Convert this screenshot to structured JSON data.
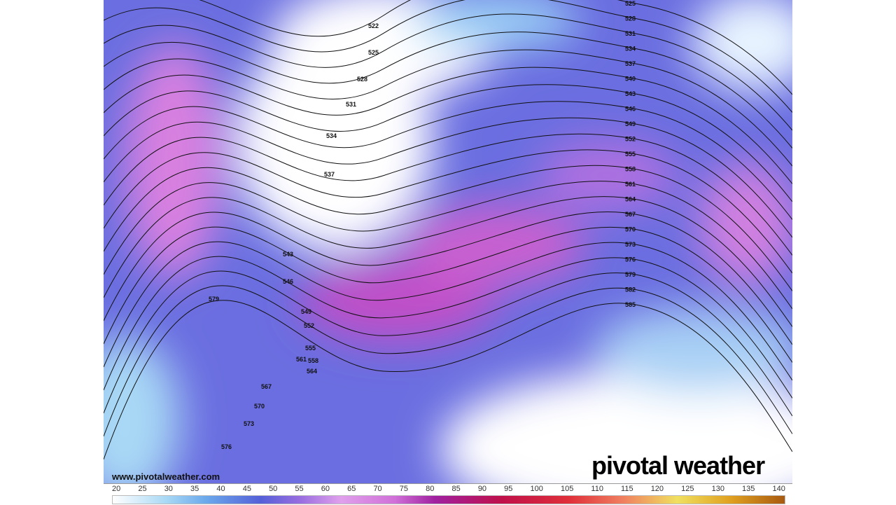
{
  "map": {
    "field": "wind speed",
    "contours_west": [
      "522",
      "525",
      "528",
      "531",
      "534",
      "537",
      "543",
      "546",
      "549",
      "552",
      "555",
      "558",
      "561",
      "564",
      "567",
      "570",
      "573",
      "576",
      "579"
    ],
    "contours_east": [
      "525",
      "528",
      "531",
      "534",
      "537",
      "540",
      "543",
      "546",
      "549",
      "552",
      "555",
      "558",
      "561",
      "564",
      "567",
      "570",
      "573",
      "576",
      "579",
      "582",
      "585"
    ]
  },
  "watermark": {
    "url": "www.pivotalweather.com",
    "brand": "pivotal weather"
  },
  "colorbar": {
    "ticks": [
      "20",
      "25",
      "30",
      "35",
      "40",
      "45",
      "50",
      "55",
      "60",
      "65",
      "70",
      "75",
      "80",
      "85",
      "90",
      "95",
      "100",
      "105",
      "110",
      "115",
      "120",
      "125",
      "130",
      "135",
      "140"
    ],
    "colors": {
      "low": "#a8d8f5",
      "mid": "#5560d8",
      "jet": "#d070d8",
      "max": "#a85a10"
    }
  }
}
